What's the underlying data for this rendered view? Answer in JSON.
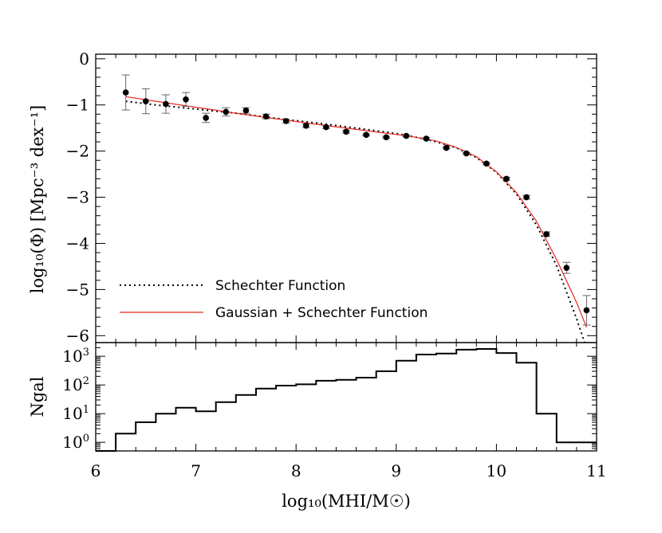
{
  "chart_data": [
    {
      "type": "scatter",
      "xlabel": "log10(MHI/M☉)",
      "ylabel": "log10(Φ) [Mpc-3 dex-1]",
      "xlim": [
        6,
        11
      ],
      "ylim": [
        -6.15,
        0.1
      ],
      "yticks": [
        0,
        -1,
        -2,
        -3,
        -4,
        -5,
        -6
      ],
      "ytick_labels": [
        "0",
        "−1",
        "−2",
        "−3",
        "−4",
        "−5",
        "−6"
      ],
      "points": [
        {
          "x": 6.3,
          "y": -0.73,
          "err": 0.38
        },
        {
          "x": 6.5,
          "y": -0.92,
          "err": 0.27
        },
        {
          "x": 6.7,
          "y": -0.98,
          "err": 0.2
        },
        {
          "x": 6.9,
          "y": -0.88,
          "err": 0.15
        },
        {
          "x": 7.1,
          "y": -1.28,
          "err": 0.1
        },
        {
          "x": 7.3,
          "y": -1.15,
          "err": 0.09
        },
        {
          "x": 7.5,
          "y": -1.12,
          "err": 0.06
        },
        {
          "x": 7.7,
          "y": -1.25,
          "err": 0.05
        },
        {
          "x": 7.9,
          "y": -1.35,
          "err": 0.04
        },
        {
          "x": 8.1,
          "y": -1.45,
          "err": 0.04
        },
        {
          "x": 8.3,
          "y": -1.48,
          "err": 0.03
        },
        {
          "x": 8.5,
          "y": -1.58,
          "err": 0.03
        },
        {
          "x": 8.7,
          "y": -1.65,
          "err": 0.02
        },
        {
          "x": 8.9,
          "y": -1.7,
          "err": 0.02
        },
        {
          "x": 9.1,
          "y": -1.67,
          "err": 0.02
        },
        {
          "x": 9.3,
          "y": -1.73,
          "err": 0.02
        },
        {
          "x": 9.5,
          "y": -1.93,
          "err": 0.02
        },
        {
          "x": 9.7,
          "y": -2.05,
          "err": 0.02
        },
        {
          "x": 9.9,
          "y": -2.27,
          "err": 0.02
        },
        {
          "x": 10.1,
          "y": -2.6,
          "err": 0.03
        },
        {
          "x": 10.3,
          "y": -3.0,
          "err": 0.04
        },
        {
          "x": 10.5,
          "y": -3.8,
          "err": 0.05
        },
        {
          "x": 10.7,
          "y": -4.53,
          "err": 0.12
        },
        {
          "x": 10.9,
          "y": -5.45,
          "err": 0.32
        }
      ],
      "lines": [
        {
          "name": "Schechter Function",
          "style": "dotted",
          "color": "#000000",
          "x": [
            6.3,
            6.6,
            7.0,
            7.4,
            7.8,
            8.2,
            8.6,
            9.0,
            9.2,
            9.4,
            9.6,
            9.8,
            10.0,
            10.2,
            10.4,
            10.6,
            10.8,
            10.88
          ],
          "y": [
            -0.92,
            -1.0,
            -1.09,
            -1.18,
            -1.29,
            -1.39,
            -1.5,
            -1.62,
            -1.7,
            -1.8,
            -1.93,
            -2.14,
            -2.46,
            -2.93,
            -3.6,
            -4.48,
            -5.63,
            -6.15
          ]
        },
        {
          "name": "Gaussian + Schechter Function",
          "style": "solid",
          "color": "#e8281e",
          "x": [
            6.3,
            6.6,
            7.0,
            7.4,
            7.8,
            8.2,
            8.6,
            9.0,
            9.2,
            9.4,
            9.6,
            9.8,
            10.0,
            10.2,
            10.4,
            10.6,
            10.8,
            10.9
          ],
          "y": [
            -0.82,
            -0.92,
            -1.05,
            -1.18,
            -1.3,
            -1.42,
            -1.53,
            -1.64,
            -1.7,
            -1.78,
            -1.92,
            -2.12,
            -2.45,
            -2.9,
            -3.52,
            -4.35,
            -5.28,
            -5.82
          ]
        }
      ],
      "legend": {
        "placement": "bottom-left",
        "entries": [
          "Schechter Function",
          "Gaussian + Schechter Function"
        ]
      }
    },
    {
      "type": "histogram",
      "xlabel": "log10(MHI/M☉)",
      "ylabel": "Ngal",
      "xlim": [
        6,
        11
      ],
      "xticks": [
        "6",
        "7",
        "8",
        "9",
        "10",
        "11"
      ],
      "yscale": "log",
      "ylim": [
        0.5,
        3000
      ],
      "ytick_labels": [
        "100",
        "101",
        "102",
        "103"
      ],
      "bins_left_edges": [
        6.0,
        6.2,
        6.4,
        6.6,
        6.8,
        7.0,
        7.2,
        7.4,
        7.6,
        7.8,
        8.0,
        8.2,
        8.4,
        8.6,
        8.8,
        9.0,
        9.2,
        9.4,
        9.6,
        9.8,
        10.0,
        10.2,
        10.4,
        10.6,
        10.8,
        11.0
      ],
      "counts": [
        0.5,
        2,
        5,
        10,
        16,
        12,
        25,
        45,
        75,
        95,
        105,
        140,
        150,
        180,
        300,
        700,
        1150,
        1250,
        1700,
        1800,
        1300,
        600,
        10,
        1,
        1
      ]
    }
  ],
  "legend": {
    "schechter_label": "Schechter Function",
    "gaussian_label": "Gaussian + Schechter Function"
  },
  "axes": {
    "top_ylabel": "log₁₀(Φ) [Mpc⁻³ dex⁻¹]",
    "bottom_ylabel": "Ngal",
    "xlabel": "log₁₀(MHI/M☉)"
  }
}
